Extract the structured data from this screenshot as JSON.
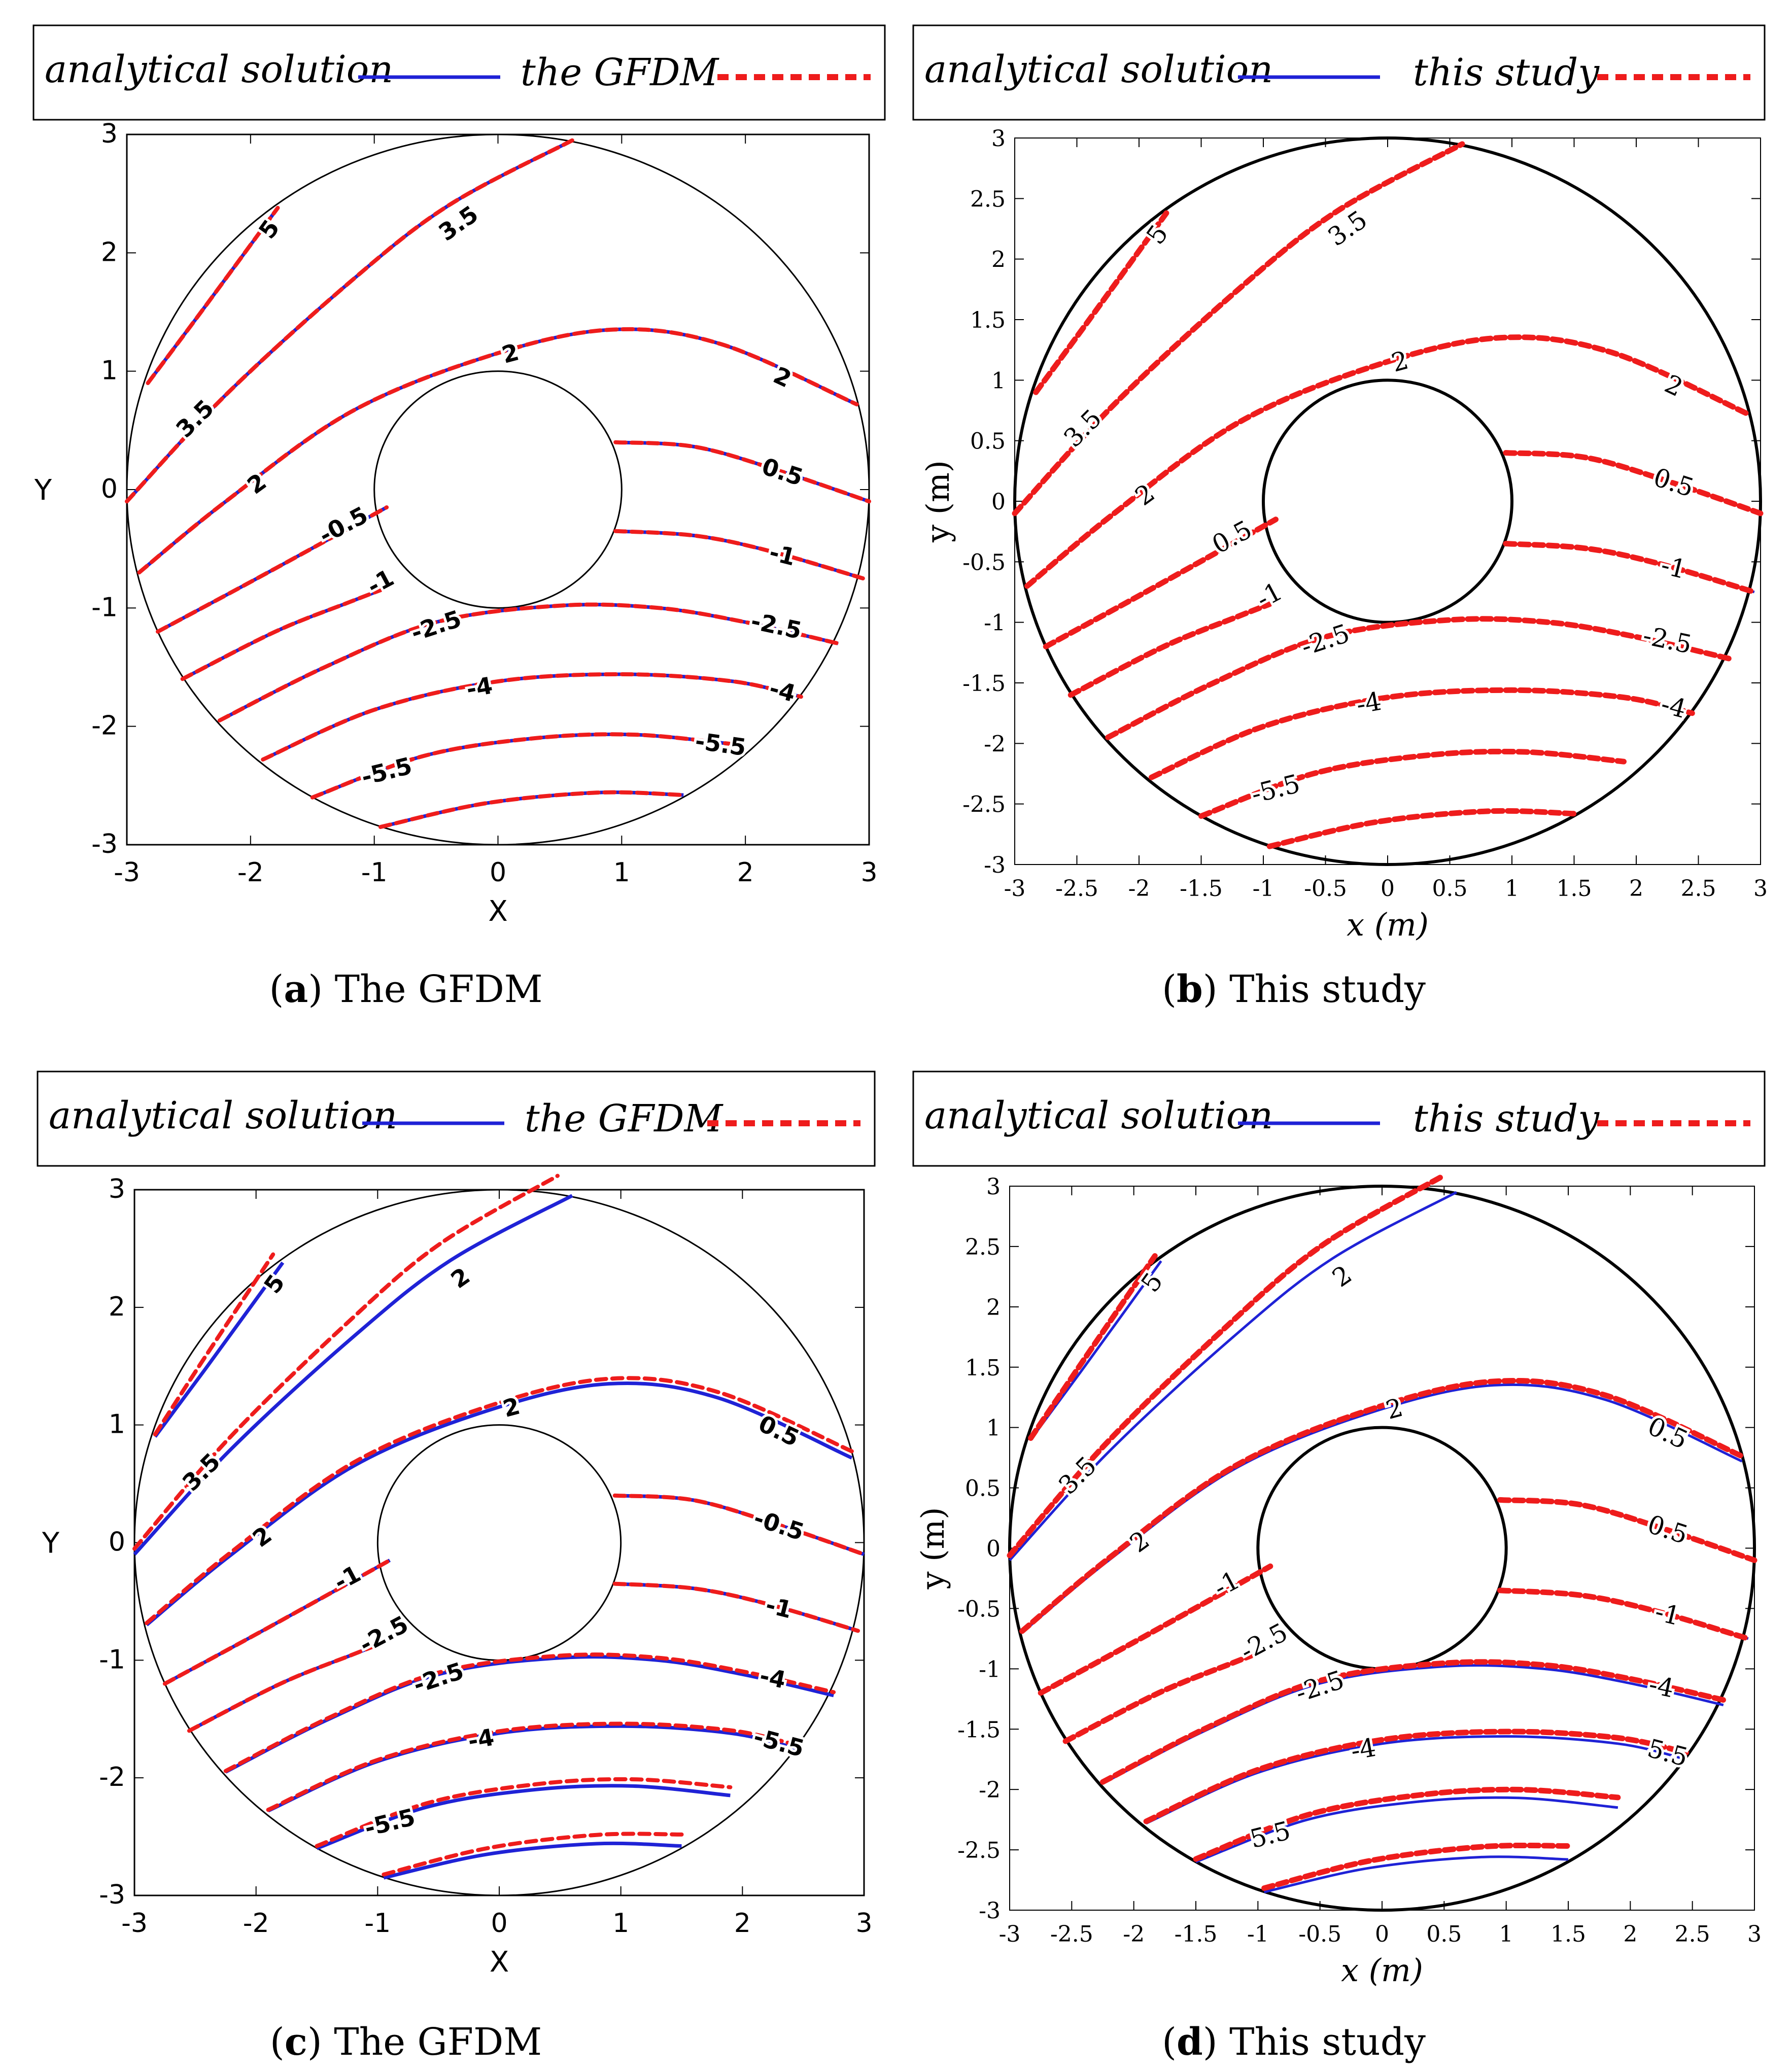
{
  "colors": {
    "analytical": "#1f22d6",
    "numerical": "#ee1c1c",
    "frame": "#000000"
  },
  "chart_data": [
    {
      "type": "line",
      "panel": "a",
      "style": "gfdm",
      "caption_letter": "a",
      "caption_text": "The GFDM",
      "legend": [
        "analytical solution",
        "the GFDM"
      ],
      "xlabel": "X",
      "ylabel": "Y",
      "xlim": [
        -3,
        3
      ],
      "ylim": [
        -3,
        3
      ],
      "xticks": [
        "-3",
        "-2",
        "-1",
        "0",
        "1",
        "2",
        "3"
      ],
      "yticks": [
        "-3",
        "-2",
        "-1",
        "0",
        "1",
        "2",
        "3"
      ],
      "outer_radius": 3,
      "inner_radius": 1,
      "contour_labels": [
        "5",
        "3.5",
        "3.5",
        "2",
        "2",
        "2",
        "0.5",
        "-0.5",
        "-1",
        "-1",
        "-2.5",
        "-2.5",
        "-4",
        "-4",
        "-5.5",
        "-5.5"
      ],
      "deviation": false
    },
    {
      "type": "line",
      "panel": "b",
      "style": "study",
      "caption_letter": "b",
      "caption_text": "This study",
      "legend": [
        "analytical solution",
        "this study"
      ],
      "xlabel": "x (m)",
      "ylabel": "y (m)",
      "xlim": [
        -3,
        3
      ],
      "ylim": [
        -3,
        3
      ],
      "xticks": [
        "-3",
        "-2.5",
        "-2",
        "-1.5",
        "-1",
        "-0.5",
        "0",
        "0.5",
        "1",
        "1.5",
        "2",
        "2.5",
        "3"
      ],
      "yticks": [
        "-3",
        "-2.5",
        "-2",
        "-1.5",
        "-1",
        "-0.5",
        "0",
        "0.5",
        "1",
        "1.5",
        "2",
        "2.5",
        "3"
      ],
      "outer_radius": 3,
      "inner_radius": 1,
      "contour_labels": [
        "5",
        "3.5",
        "3.5",
        "2",
        "2",
        "2",
        "0.5",
        "0.5",
        "-1",
        "-1",
        "-2.5",
        "-2.5",
        "-4",
        "-4",
        "-5.5"
      ],
      "deviation": false
    },
    {
      "type": "line",
      "panel": "c",
      "style": "gfdm",
      "caption_letter": "c",
      "caption_text": "The GFDM",
      "legend": [
        "analytical solution",
        "the GFDM"
      ],
      "xlabel": "X",
      "ylabel": "Y",
      "xlim": [
        -3,
        3
      ],
      "ylim": [
        -3,
        3
      ],
      "xticks": [
        "-3",
        "-2",
        "-1",
        "0",
        "1",
        "2",
        "3"
      ],
      "yticks": [
        "-3",
        "-2",
        "-1",
        "0",
        "1",
        "2",
        "3"
      ],
      "outer_radius": 3,
      "inner_radius": 1,
      "contour_labels": [
        "5",
        "3.5",
        "2",
        "2",
        "2",
        "0.5",
        "-0.5",
        "-1",
        "-1",
        "-2.5",
        "-2.5",
        "-4",
        "-4",
        "-5.5",
        "-5.5"
      ],
      "deviation": true
    },
    {
      "type": "line",
      "panel": "d",
      "style": "study",
      "caption_letter": "d",
      "caption_text": "This study",
      "legend": [
        "analytical solution",
        "this study"
      ],
      "xlabel": "x (m)",
      "ylabel": "y (m)",
      "xlim": [
        -3,
        3
      ],
      "ylim": [
        -3,
        3
      ],
      "xticks": [
        "-3",
        "-2.5",
        "-2",
        "-1.5",
        "-1",
        "-0.5",
        "0",
        "0.5",
        "1",
        "1.5",
        "2",
        "2.5",
        "3"
      ],
      "yticks": [
        "-3",
        "-2.5",
        "-2",
        "-1.5",
        "-1",
        "-0.5",
        "0",
        "0.5",
        "1",
        "1.5",
        "2",
        "2.5",
        "3"
      ],
      "outer_radius": 3,
      "inner_radius": 1,
      "contour_labels": [
        "5",
        "3.5",
        "2",
        "2",
        "2",
        "0.5",
        "0.5",
        "-1",
        "-1",
        "-2.5",
        "-2.5",
        "-4",
        "-4",
        "5.5",
        "5.5"
      ],
      "deviation": true
    }
  ]
}
